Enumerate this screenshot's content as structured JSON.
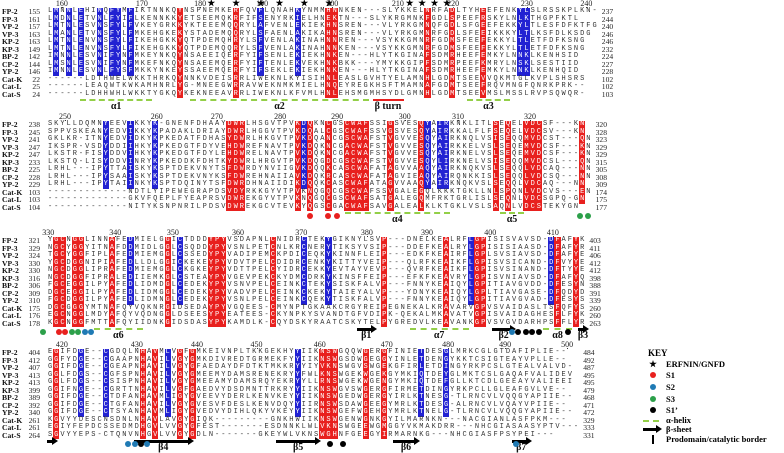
{
  "colors": {
    "conserved_red": "#e8201e",
    "similar_blue": "#2222d2",
    "helix_green": "#93cf48",
    "S1": "#e8201e",
    "S2": "#1f7ab4",
    "S3": "#2ca04a",
    "S1'": "#000000"
  },
  "alignment": {
    "sequence_names": [
      "FP-2",
      "FP-3",
      "VP-2",
      "VP-3",
      "KP-2",
      "KP-3",
      "BP-2",
      "CP-2",
      "YP-2",
      "Cat-K",
      "Cat-L",
      "Cat-S"
    ],
    "blocks": [
      {
        "ruler": [
          {
            "label": "160",
            "col": 2.4
          },
          {
            "label": "170",
            "col": 15.3
          },
          {
            "label": "180",
            "col": 24.7
          },
          {
            "label": "190",
            "col": 34.7
          },
          {
            "label": "200",
            "col": 46
          },
          {
            "label": "210",
            "col": 56.6
          },
          {
            "label": "220",
            "col": 65.5
          },
          {
            "label": "230",
            "col": 77.4
          },
          {
            "label": "240",
            "col": 87
          }
        ],
        "stars": [
          26,
          30,
          34,
          37,
          41,
          45,
          58,
          60,
          62,
          64
        ],
        "start": [
          155,
          161,
          157,
          163,
          163,
          149,
          142,
          144,
          146,
          22,
          25,
          24
        ],
        "end": [
          237,
          244,
          240,
          246,
          246,
          232,
          224,
          227,
          228,
          102,
          102,
          103
        ],
        "seqs": [
          "LMNNLEHINQFYMFIKTNNKQYNSPNEMKERFQVFLQNAHKYNMMHNNKEN---SLYKKELNRFADLTYHEEFENKYLSLRSSKPLKN-",
          "LMDNLETVNLFYIFLKENNKKYETSEEMQKRFIFSENYRKIELHNEKTN---SLYKRGMNKFGDLSPEEFRSKYLNLKTHGPFKTL",
          "LMTNLESVNSFYLFVKEYGRKKYKTEEEMQQRYLAFVENLEKIEKHNSREN---VLYRKGMNQFGDLSFGEEFEKKYLTLESFDFKTFG",
          "LMANLETVNSFYLFMKEHGKEKYSTADEMQQRYLSFAENLAKIKAHNSREN---VLYRKGMNRFGDLSFEEIKKKYLTLKSFDLKSDG",
          "LMTNLENVNSFYLFIKEHGKKYQTPDEMQHRYLSFVENLAKINAHNNREN---VSYKKGMNRFGDMSFEEFEKKYLTLETFDFKSNG",
          "LMTNLENVNSFYLFIKEHGKKYQTPDEMQQRYLSFVENLAKINAHNNKEN---VSYKKGMNRFGDMSFEEFEKKYLTLETFDFKSNG",
          "IMNNLESVNIFYNFMKEYNKQYNSAEEIQERFYIFSENLEKIEKHNKEN---HLYTKGINAFSDMRHEEFEMKYLNNKLKENHSID",
          "LMSNLESVNIFYNFMKEFNKQYNSAEEMQERFYIFTENLEKVEKHNKBKK---YMYKKGIPFSDMRPEEFKMRYLNSKLSESTIID",
          "IMNNLESVNLFYSFMKKYNKEYSSAEEMQERFYIFSEKLEKIEKHNKEN---HLYTKGINAFSDMRHEEFEMKYLNNKLKENHQID",
          "------LDTHWELWKKTHRKQYNNKVDEISRRLIWEKNLKYISIHNLEASLGVHTYELAMNHLGDMTSEEVVQKMTGLKVPLSHSRS",
          "------LEAQWTKWKAMHNRLYG-MNEEGWRRAVWEKNMKMIELHNQEYREGKHSFTMAMNAFGDMTSEEFRQVMNGFQNRKPRK--",
          "------LDHHWHLWKKTYGKQYKEKNEEAVRRLIWEKNLKFVMLHNLEHSMGMHSYDLGMNHLGDMTSEEVMSLMSSLRVPSQWQR-"
        ],
        "red_cols": [
          21,
          30,
          45,
          46,
          61,
          65,
          70
        ],
        "blue_cols": [
          1,
          3,
          5,
          8,
          10,
          11,
          13,
          34,
          40,
          76,
          77
        ],
        "elements": [
          {
            "type": "helix",
            "label": "α1",
            "from": 5.3,
            "to": 17
          },
          {
            "type": "helix",
            "label": "α2",
            "from": 23,
            "to": 52
          },
          {
            "type": "turn",
            "label": "β turn",
            "from": 52.5,
            "to": 57.5
          },
          {
            "type": "helix",
            "label": "α3",
            "from": 67.7,
            "to": 74.7
          }
        ],
        "dots": []
      },
      {
        "ruler": [
          {
            "label": "250",
            "col": 2.9
          },
          {
            "label": "260",
            "col": 17.7
          },
          {
            "label": "270",
            "col": 27.4
          },
          {
            "label": "280",
            "col": 37.6
          },
          {
            "label": "290",
            "col": 46.8
          },
          {
            "label": "300",
            "col": 57.7
          },
          {
            "label": "310",
            "col": 66.3
          },
          {
            "label": "320",
            "col": 77.9
          }
        ],
        "stars": [],
        "start": [
          238,
          245,
          241,
          247,
          247,
          233,
          225,
          228,
          229,
          103,
          103,
          104
        ],
        "end": [
          320,
          328,
          323,
          329,
          329,
          315,
          305,
          308,
          309,
          174,
          175,
          177
        ],
        "seqs": [
          "SKYLLDQMNYEEVIKKYK-GNENFDHAAYDWRLHSGVTPVKDQKNCGSCWAFSSIGSVESQYAIRKNKLITLSEQELVDCSF---KN",
          "SPPVSKEANYEDVIKKYKPADAKLDRIAYDWRLHGGVTPVKDQALCGSCWAFSSVGSVESQYAIRKKALFLFSEQELVDCSV---KN",
          "GKLKR-ITNYEDVIDKYKPKEDATFDHASYDWRLHKGVTPVKDQANCGSCWAFSTVGVVESQYAIRKNQLVSISEQQMVDCST---QN",
          "IKSPR-VSDYDDIIHKYKPKEDGTFDYVEHDWREFNAVTPVKDQKNCGACWAFSTVGVVESQYAIRKKELVSLSEQEMVDCSF---KN",
          "LKSTR-FISYDDVIHKYKPKEDGTFDYLEHDWRELNAVTPVKDQKNCGACWAFSTVGVVESQYAIRKNELVSLSEQEMVDCSF---KN",
          "LKSTQ-LISYDDVINRYKPKEDDKFDHTKYDWRLHRGVTPVKDQGDCGSCWAFSTVGVVESQYLIRKNELVSISEQQMVDCSL---QN",
          "LRHL---IPYTTAISKYKSPTDEKVNYTSFDWRDYNVIIGVKDQQKCASCWAFATAGVVAAQYAIRKNQKVSLSEQQLVDCAQ---NN",
          "LRHL---IPYSAAISKYKSPTDEKVNYKSFDWREHNAIIAVKDQKRCASCWAFATAGVIEAQYAIRQNKKISLSEQQLVDCSQ---NN",
          "LRHL---IPYTAIINKYKSPTDQINYTSFDWRDHNAIIDIKDQQKCASCWAFATAGVVAAQYAIRKNQKVSLSEQQLVDCAQ---NN",
          "-------------NDTLYIPEWEGRAPDSVDYRKKGYVTPVKNQGQCGSCWAFSSVGALEGQLKKKTGKLLNLSPQNLVDCVS---EN",
          "-------------GKVFQEPLFYEAPRSVDWREKGYVTPVKNQGQCGSCWAFSATGALEGQMFRKTGRLISLSEQNLVDCSGPQ-GN",
          "-------------NITYKSNPNRILPDSVDWREKGCVTEVKYQGSCGACWAFSAVGALEALKLKTGKLVSLSAQNLVDCSTEKYGN"
        ],
        "red_cols": [
          29,
          30,
          31,
          40,
          42,
          45,
          48,
          49,
          50,
          51,
          55,
          60,
          72,
          74,
          77,
          78,
          79,
          86
        ],
        "blue_cols": [
          9,
          13,
          17,
          41,
          61,
          63,
          64
        ],
        "elements": [
          {
            "type": "helix",
            "label": "α4",
            "from": 48,
            "to": 65
          },
          {
            "type": "helix",
            "label": "α5",
            "from": 73,
            "to": 77
          }
        ],
        "dots": [
          {
            "site": "S1",
            "col": 42.4
          },
          {
            "site": "S1",
            "col": 45.3
          },
          {
            "site": "S1",
            "col": 46.8
          },
          {
            "site": "S3",
            "col": 86
          },
          {
            "site": "S3",
            "col": 87.3
          }
        ]
      },
      {
        "ruler": [
          {
            "label": "330",
            "col": 0.2
          },
          {
            "label": "340",
            "col": 11
          },
          {
            "label": "350",
            "col": 20.3
          },
          {
            "label": "360",
            "col": 30.8
          },
          {
            "label": "370",
            "col": 41
          },
          {
            "label": "380",
            "col": 51.6
          },
          {
            "label": "390",
            "col": 61.3
          },
          {
            "label": "400",
            "col": 71.5
          },
          {
            "label": "410",
            "col": 81.6
          }
        ],
        "stars": [],
        "start": [
          321,
          329,
          324,
          330,
          330,
          316,
          306,
          309,
          310,
          175,
          176,
          178
        ],
        "end": [
          403,
          411,
          406,
          412,
          412,
          398,
          388,
          391,
          339,
          260,
          260,
          263
        ],
        "seqs": [
          "YGCNGGLINNAFEDMIELGGICTDDDYPYVSDAPNLCNIDRCTEKYGIKNYLSVP---DNELKEALRFLGPISISVAVSD-DFAFYK",
          "NGCYGGYITNAFDDMIDLGGLCSQDDYPYVSNLPETCNLKRCNERYTIKSYVSIP---DDEFKEALRYLGPISISIAASD-DFAFYR",
          "TGCYGGFIPLAFEDMIEMGGLCSSEDYPYVADIPEMCKPDICEQKYKINNFLEIP---EDKFKEAIRFLGPLSVSIAVSD-DFAFYE",
          "YGCDGGNIPIAFEDLLDLGGICKEKEYPYVDVTPELCDIDRCENKYKITTYVEIP---QLRFKEAIKFLGPISVSICAND-DFVYYE",
          "NGCDGGLIPRAFEDMIEMGGLCKGKEYPYVDTTPELCYIDRCEKKYEVTAYVEVP---QVRFKEAIKFLGPISVSINAND-DFTYYE",
          "NGCDGGFIPRALEDIIEMKGLCSTEAYPYVGEVPEKCKYDMCDRKYKINSFFEIP---EFKFKEAVRYLGPISVNIAVSD-DFAFYQ",
          "FGCEGGILPYAFEDLIDMDGLCEDEKYPYVSNVPELCEINKCTEKYSISKFALVP---FNNYKEAIQYLGPITIAVGVDD-DFESYN",
          "DGCEGGILPYAFEDLIDMGGLCEDEKYPYVADVPELCEINKCKEKYTAIEYALVP---YDNYKEAIQYLGPLTIAVGASE-DFQDYD",
          "FGCDGGILPYAFEDLIDMNGLCEDEKYPYVSNLPELCEINKCQEKYTISKFALVP---FNNYKEAIQYLGPITIAVGVAD-DFESYS",
          "DGCGGGYMTNAFQYVQKNRGIDSEDAYPYVGQEES-CMYNPTGKAAKCRGYREIPEGNEKALKRAVARVGPVSVAIDASLTSFQFYS",
          "EGCNGGLMDYAFQYVQDNGGLDSEESYPYEATEES-CKYNPKYSVANDTGFVDIPK-QEKALMKAVATVGPISVAIDAGHESFLFYK",
          "KGCNGGFMTTAFQYIIDNKGIDSDASYPYKAMDLK-CQYDSKYRAATCSKYTELPYGREDVLKEAVANKGPVSVGVDARHPSFFLYR"
        ],
        "red_cols": [
          1,
          2,
          4,
          5,
          10,
          19,
          26,
          27,
          28,
          36,
          54,
          64,
          69,
          70,
          82,
          85
        ],
        "blue_cols": [
          13,
          21,
          41,
          45,
          68,
          81
        ],
        "elements": [
          {
            "type": "helix",
            "label": "α6",
            "from": 7.5,
            "to": 15.5
          },
          {
            "type": "sheet",
            "label": "β1",
            "from": 50,
            "to": 53
          },
          {
            "type": "helix",
            "label": "α7",
            "from": 58.5,
            "to": 68
          },
          {
            "type": "sheet",
            "label": "β2",
            "from": 71.8,
            "to": 75.5
          },
          {
            "type": "helix",
            "label": "α8",
            "from": 80,
            "to": 84.7
          },
          {
            "type": "sheet",
            "label": "β3",
            "from": 85.6,
            "to": 87.3
          }
        ],
        "dots": [
          {
            "site": "S3",
            "col": -0.6
          },
          {
            "site": "S1",
            "col": 1.9
          },
          {
            "site": "S1",
            "col": 2.9
          },
          {
            "site": "S3",
            "col": 4
          },
          {
            "site": "S3",
            "col": 5
          },
          {
            "site": "S2",
            "col": 6.1
          },
          {
            "site": "S2",
            "col": 7.1
          },
          {
            "site": "S2",
            "col": 75
          },
          {
            "site": "S1'",
            "col": 76
          },
          {
            "site": "S1'",
            "col": 77.2
          },
          {
            "site": "S1'",
            "col": 78.3
          },
          {
            "site": "S1'",
            "col": 79.3
          },
          {
            "site": "S1'",
            "col": 84
          }
        ]
      },
      {
        "ruler": [
          {
            "label": "420",
            "col": 2.4
          },
          {
            "label": "430",
            "col": 14.5
          },
          {
            "label": "440",
            "col": 24.2
          },
          {
            "label": "450",
            "col": 33.8
          },
          {
            "label": "460",
            "col": 44
          },
          {
            "label": "470",
            "col": 54.8
          },
          {
            "label": "480",
            "col": 64.7
          },
          {
            "label": "490",
            "col": 73.9
          },
          {
            "label": "500",
            "col": 83.9
          }
        ],
        "stars": [],
        "start": [
          404,
          412,
          407,
          413,
          413,
          399,
          389,
          392,
          340,
          261,
          261,
          264
        ],
        "end": [
          484,
          492,
          487,
          495,
          495,
          479,
          468,
          471,
          472,
          329,
          333,
          331
        ],
        "seqs": [
          "EGIFDGE--CGDQLNHAVMLVGFGMKEIVNPLTKKGEKHYYIIKNSWGQQWGERGFINIETDESGLMRKCGLGTDAFIPLIE--",
          "GGFYDGE--CGAAPNHAVILVGYGMKDIVREDTGRMEKFYYIIKNSWGSDWGEGGYINLETDENGYKKTCSIGTEAYVPLLE--",
          "GGIFDGE--CGEAPNHAVILVGYGFAEDAYDFDTKTMKKRYYIYVKNSWGVSWGEKGFIRLETDINGYRKPCSLGTEALVALVD-",
          "GGLFDGS--CGFSPNHAVILVGYGMEEMYDAMSRENEKRYYFWLKNSWGEKWGEKGYMKIQTDEYGLMKTCSLGAQAFVALIDEV",
          "GGLFDGS--CSISPNHAVILVGYGMEEAMYDAMSRQYEKRYYLLRNSWGEKWGENGYMKIQTDEFGLLKTCDLGEEAYVALIEEI",
          "GGIFNGE--CGRTTNHAVILVGFGAEDVYDSDMNTTRKRYYIIKNSWGVSWGERGFIRMETDINGYRKPCLLGLEAFGVLVE--",
          "GGIFDGE--CTDFANHAVMLIGYGVEEVYDERLKENVKEYYIIKNSWGEDWGERGYIRLKTNESG-TLRNCVLVQQGYAPIIE--",
          "GGIFDGE--CTGFANHAVILVGYGVESVFDESLKENVDQYYIIRNSWSDAWGEEGYMRLKTDESG-ALRNCVLVQAYVPIIE--",
          "GGIFDGE--CTSYANHAVMLIGYGVEDVYDIHLQKYVKEYYIIKNSWGEFWGEHGYMRLKTNELG-TLRNCVLVQQGYAPIIE--",
          "KGVYYDESCNSDNLNHAVLAVGYGIQK---------GNKHWIIKNSWGENWGNKGYILMARNKN---NACGIANLASFPKM---",
          "EGIYFEPDCSSEDMDHGVLVVGYGFEST-------ESDNNKLWLVKNSWGEEWGMGGYVKMAKDRR---NHCGIASAASYPTV---",
          "SGVYYEPS-CTQNVNHGVLVVGYGDLN-------GKEYWLVKNSWGHNFGEEGYIRMARNKG---NHCGIASFPSYPEI---"
        ],
        "red_cols": [
          1,
          15,
          17,
          21,
          23,
          44,
          45,
          46,
          51,
          54
        ],
        "blue_cols": [
          5,
          9,
          19,
          40,
          60,
          64
        ],
        "elements": [
          {
            "type": "sheet",
            "label": "",
            "from": 0,
            "to": 1.6
          },
          {
            "type": "sheet",
            "label": "β4",
            "from": 14,
            "to": 23.5
          },
          {
            "type": "sheet",
            "label": "β5",
            "from": 37,
            "to": 44
          },
          {
            "type": "sheet",
            "label": "β6",
            "from": 55.8,
            "to": 60
          },
          {
            "type": "sheet",
            "label": "β7",
            "from": 75,
            "to": 78
          }
        ],
        "dots": [
          {
            "site": "S2",
            "col": 13.1
          },
          {
            "site": "S2",
            "col": 14.2
          },
          {
            "site": "S1'",
            "col": 15.2
          },
          {
            "site": "S2",
            "col": 16.1
          },
          {
            "site": "S1'",
            "col": 45.6
          },
          {
            "site": "S1'",
            "col": 47.7
          },
          {
            "site": "S2",
            "col": 75.6
          }
        ]
      }
    ]
  },
  "key": {
    "title": "KEY",
    "star_label": "ERFNIN/GNFD",
    "s1_label": "S1",
    "s2_label": "S2",
    "s3_label": "S3",
    "s1p_label": "S1’",
    "helix_label": "α-helix",
    "sheet_label": "β-sheet",
    "border_label": "Prodomain/catalytic border"
  }
}
